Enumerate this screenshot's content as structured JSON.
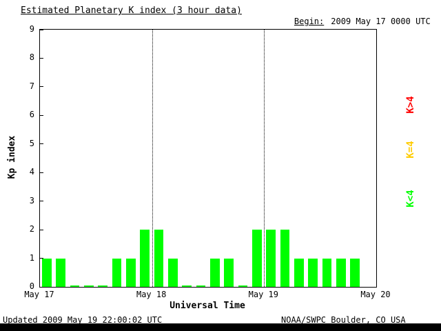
{
  "header": {
    "title": "Estimated Planetary K index (3 hour data)",
    "begin_label": "Begin:",
    "begin_value": "2009 May 17 0000 UTC"
  },
  "footer": {
    "updated": "Updated 2009 May 19 22:00:02 UTC",
    "source": "NOAA/SWPC Boulder, CO USA"
  },
  "legend": [
    {
      "label": "K>4",
      "color": "#ff0000"
    },
    {
      "label": "K=4",
      "color": "#ffcc00"
    },
    {
      "label": "K<4",
      "color": "#00ff00"
    }
  ],
  "chart_data": {
    "type": "bar",
    "title": "Estimated Planetary K index (3 hour data)",
    "xlabel": "Universal Time",
    "ylabel": "Kp index",
    "ylim": [
      0,
      9
    ],
    "yticks": [
      0,
      1,
      2,
      3,
      4,
      5,
      6,
      7,
      8,
      9
    ],
    "xtick_labels": [
      "May 17",
      "May 18",
      "May 19",
      "May 20"
    ],
    "bar_color": "#00ff00",
    "grid": "dotted vertical lines at day boundaries",
    "legend_position": "right, rotated",
    "bar_interval_hours": 3,
    "bars_per_day": 8,
    "num_days": 3,
    "days": [
      "May 17",
      "May 18",
      "May 19"
    ],
    "values": [
      1,
      1,
      0,
      0,
      0,
      1,
      1,
      2,
      2,
      1,
      0,
      0,
      1,
      1,
      0,
      2,
      2,
      2,
      1,
      1,
      1,
      1,
      1
    ],
    "values_by_day": {
      "May 17": [
        1,
        1,
        0,
        0,
        0,
        1,
        1,
        2
      ],
      "May 18": [
        2,
        1,
        0,
        0,
        1,
        1,
        0,
        2
      ],
      "May 19": [
        2,
        2,
        1,
        1,
        1,
        1,
        1
      ]
    }
  }
}
